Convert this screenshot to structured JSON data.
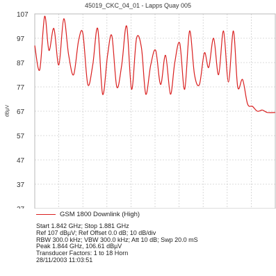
{
  "chart_data": {
    "type": "line",
    "title": "45019_CKC_04_01 - Lapps Quay 005",
    "ylabel": "dBµV",
    "xlabel": "",
    "ylim": [
      27,
      107
    ],
    "yticks": [
      "107",
      "97",
      "87",
      "77",
      "67",
      "57",
      "47",
      "37",
      "27"
    ],
    "xlim": [
      1.842,
      1.881
    ],
    "grid": true,
    "legend": "bottom",
    "series": [
      {
        "name": "GSM 1800 Downlink (High)",
        "color": "#d91e1e",
        "x": [
          1.842,
          1.8428,
          1.8436,
          1.8443,
          1.8451,
          1.8459,
          1.8467,
          1.8475,
          1.8483,
          1.8491,
          1.8498,
          1.8506,
          1.8514,
          1.8522,
          1.853,
          1.8538,
          1.8545,
          1.8553,
          1.8561,
          1.8569,
          1.8577,
          1.8585,
          1.8593,
          1.86,
          1.8608,
          1.8616,
          1.8624,
          1.8632,
          1.864,
          1.8647,
          1.8655,
          1.8663,
          1.8671,
          1.8679,
          1.8687,
          1.8695,
          1.8702,
          1.871,
          1.8718,
          1.8726,
          1.8734,
          1.8742,
          1.8749,
          1.8757,
          1.8765,
          1.8773,
          1.8781,
          1.8789,
          1.8797,
          1.881
        ],
        "y": [
          94,
          84,
          106,
          92,
          101,
          86,
          105,
          90,
          82,
          96,
          99,
          78,
          86,
          101,
          74,
          90,
          98,
          77,
          86,
          102,
          76,
          97,
          93,
          74,
          86,
          92,
          78,
          90,
          74,
          87,
          95,
          76,
          100,
          82,
          78,
          91,
          85,
          97,
          82,
          100,
          79,
          100,
          77,
          80,
          70,
          69,
          67,
          67.5,
          66.5,
          66.5
        ]
      }
    ]
  },
  "notes": [
    "Start 1.842 GHz; Stop 1.881 GHz",
    "Ref 107 dBµV; Ref Offset 0.0 dB; 10 dB/div",
    "RBW 300.0 kHz; VBW 300.0 kHz; Att 10 dB; Swp 20.0 mS",
    "Peak 1.844 GHz, 106.61 dBµV",
    "Transducer Factors: 1 to 18 Horn",
    "28/11/2003 11:03:51"
  ]
}
